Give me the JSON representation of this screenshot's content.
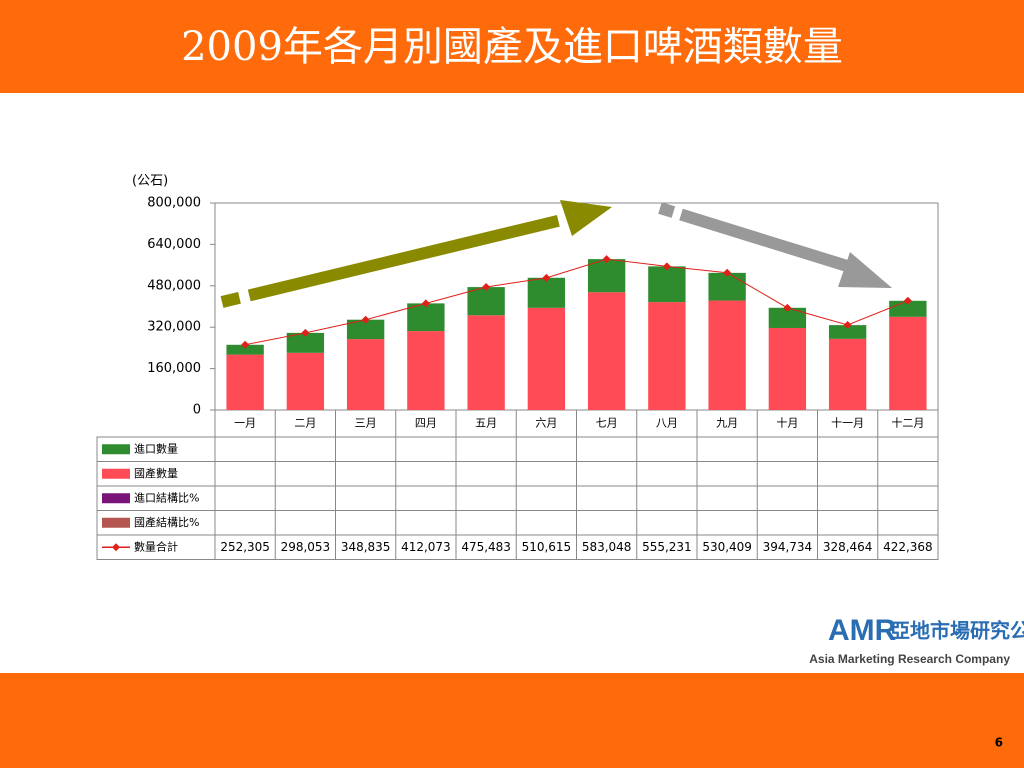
{
  "page": {
    "title": "2009年各月別國產及進口啤酒類數量",
    "company_cn": "亞地市場研究公司",
    "company_en": "Asia Marketing Research Company",
    "logo": "AMR",
    "page_number": "6"
  },
  "chart_data": {
    "type": "bar",
    "stacked": true,
    "y_axis_label": "(公石)",
    "categories": [
      "一月",
      "二月",
      "三月",
      "四月",
      "五月",
      "六月",
      "七月",
      "八月",
      "九月",
      "十月",
      "十一月",
      "十二月"
    ],
    "ylim": [
      0,
      800000
    ],
    "yticks": [
      0,
      {
        "value": 160000,
        "label": "160,000"
      },
      {
        "value": 320000,
        "label": "320,000"
      },
      {
        "value": 480000,
        "label": "480,000"
      },
      {
        "value": 640000,
        "label": "640,000"
      },
      {
        "value": 800000,
        "label": "800,000"
      }
    ],
    "series": [
      {
        "name": "國產數量",
        "color": "#ff4b55",
        "values": [
          214000,
          221000,
          274000,
          305000,
          366000,
          395000,
          455000,
          417000,
          423000,
          317000,
          275000,
          360000
        ]
      },
      {
        "name": "進口數量",
        "color": "#2e8b2e",
        "values": [
          38000,
          77000,
          75000,
          107000,
          109000,
          116000,
          128000,
          138000,
          107000,
          78000,
          53000,
          62000
        ]
      },
      {
        "name": "數量合計",
        "type": "line",
        "color": "#e0201a",
        "values": [
          252305,
          298053,
          348835,
          412073,
          475483,
          510615,
          583048,
          555231,
          530409,
          394734,
          328464,
          422368
        ],
        "value_labels": [
          "252,305",
          "298,053",
          "348,835",
          "412,073",
          "475,483",
          "510,615",
          "583,048",
          "555,231",
          "530,409",
          "394,734",
          "328,464",
          "422,368"
        ]
      }
    ],
    "extra_legend": [
      {
        "name": "進口結構比%",
        "color": "#7a147a"
      },
      {
        "name": "國產結構比%",
        "color": "#b5554f"
      }
    ]
  }
}
